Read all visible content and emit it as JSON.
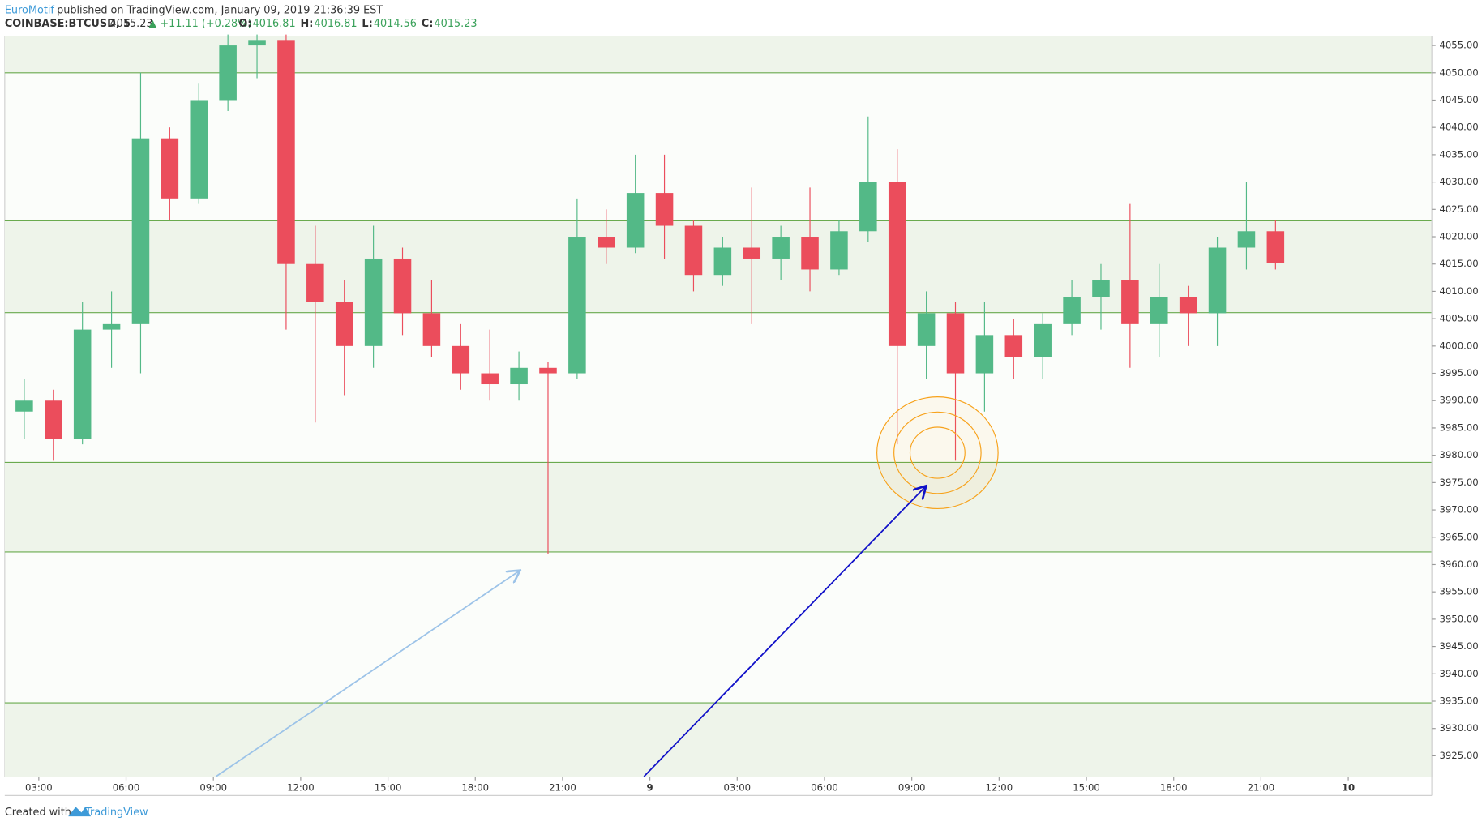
{
  "header": {
    "author": "EuroMotif",
    "published": "published on TradingView.com, January 09, 2019 21:36:39 EST",
    "symbol": "COINBASE:BTCUSD, 5",
    "price": "4015.23",
    "change": "▲ +11.11 (+0.28%)",
    "ohlc": [
      {
        "label": "O:",
        "value": "4016.81"
      },
      {
        "label": "H:",
        "value": "4016.81"
      },
      {
        "label": "L:",
        "value": "4014.56"
      },
      {
        "label": "C:",
        "value": "4015.23"
      }
    ]
  },
  "footer": {
    "created": "Created with",
    "brand": "TradingView"
  },
  "chart_data": {
    "type": "candlestick",
    "x": [
      2,
      3,
      4,
      5,
      6,
      7,
      8,
      9,
      10,
      11,
      12,
      13,
      14,
      15,
      16,
      17,
      18,
      19,
      20,
      21,
      22,
      23,
      24,
      25,
      26,
      27,
      28,
      29,
      30,
      31,
      32,
      33,
      34,
      35,
      36,
      37,
      38,
      39,
      40,
      41,
      42,
      43,
      44,
      45
    ],
    "open": [
      3988,
      3990,
      3983,
      4003,
      4004,
      4038,
      4027,
      4045,
      4055,
      4056,
      4015,
      4008,
      4000,
      4016,
      4006,
      4000,
      3995,
      3993,
      3996,
      3995,
      4020,
      4018,
      4028,
      4022,
      4013,
      4018,
      4016,
      4020,
      4014,
      4021,
      4030,
      4000,
      4006,
      3995,
      4002,
      3998,
      4004,
      4009,
      4012,
      4004,
      4009,
      4006,
      4018,
      4021
    ],
    "high": [
      3994,
      3992,
      4008,
      4010,
      4050,
      4040,
      4048,
      4057,
      4057,
      4057,
      4022,
      4012,
      4022,
      4018,
      4012,
      4004,
      4003,
      3999,
      3997,
      4027,
      4025,
      4035,
      4035,
      4023,
      4020,
      4029,
      4022,
      4029,
      4023,
      4042,
      4036,
      4010,
      4008,
      4008,
      4005,
      4006,
      4012,
      4015,
      4026,
      4015,
      4011,
      4020,
      4030,
      4023
    ],
    "low": [
      3983,
      3979,
      3982,
      3996,
      3995,
      4023,
      4026,
      4043,
      4049,
      4003,
      3986,
      3991,
      3996,
      4002,
      3998,
      3992,
      3990,
      3990,
      3962,
      3994,
      4015,
      4017,
      4016,
      4010,
      4011,
      4004,
      4012,
      4010,
      4013,
      4019,
      3982,
      3994,
      3979,
      3988,
      3994,
      3994,
      4002,
      4003,
      3996,
      3998,
      4000,
      4000,
      4014,
      4014
    ],
    "close": [
      3990,
      3983,
      4003,
      4004,
      4038,
      4027,
      4045,
      4055,
      4056,
      4015,
      4008,
      4000,
      4016,
      4006,
      4000,
      3995,
      3993,
      3996,
      3995,
      4020,
      4018,
      4028,
      4022,
      4013,
      4018,
      4016,
      4020,
      4014,
      4021,
      4030,
      4000,
      4006,
      3995,
      4002,
      3998,
      4004,
      4009,
      4012,
      4004,
      4009,
      4006,
      4018,
      4021,
      4015.23
    ],
    "up_color": "#53b987",
    "down_color": "#eb4d5c",
    "levels": [
      4050,
      4022.9,
      4006.1,
      3978.7,
      3962.3,
      3934.7
    ],
    "level_color": "#6aaa4e",
    "xlim": [
      1.83,
      50.87
    ],
    "xticks": [
      {
        "value": 3,
        "label": "03:00"
      },
      {
        "value": 6,
        "label": "06:00"
      },
      {
        "value": 9,
        "label": "09:00"
      },
      {
        "value": 12,
        "label": "12:00"
      },
      {
        "value": 15,
        "label": "15:00"
      },
      {
        "value": 18,
        "label": "18:00"
      },
      {
        "value": 21,
        "label": "21:00"
      },
      {
        "value": 24,
        "label": "9"
      },
      {
        "value": 27,
        "label": "03:00"
      },
      {
        "value": 30,
        "label": "06:00"
      },
      {
        "value": 33,
        "label": "09:00"
      },
      {
        "value": 36,
        "label": "12:00"
      },
      {
        "value": 39,
        "label": "15:00"
      },
      {
        "value": 42,
        "label": "18:00"
      },
      {
        "value": 45,
        "label": "21:00"
      },
      {
        "value": 48,
        "label": "10"
      }
    ],
    "ylim": [
      3921.2,
      4056.7
    ],
    "yticks": [
      {
        "value": 3925,
        "label": "3925.00"
      },
      {
        "value": 3930,
        "label": "3930.00"
      },
      {
        "value": 3935,
        "label": "3935.00"
      },
      {
        "value": 3940,
        "label": "3940.00"
      },
      {
        "value": 3945,
        "label": "3945.00"
      },
      {
        "value": 3950,
        "label": "3950.00"
      },
      {
        "value": 3955,
        "label": "3955.00"
      },
      {
        "value": 3960,
        "label": "3960.00"
      },
      {
        "value": 3965,
        "label": "3965.00"
      },
      {
        "value": 3970,
        "label": "3970.00"
      },
      {
        "value": 3975,
        "label": "3975.00"
      },
      {
        "value": 3980,
        "label": "3980.00"
      },
      {
        "value": 3985,
        "label": "3985.00"
      },
      {
        "value": 3990,
        "label": "3990.00"
      },
      {
        "value": 3995,
        "label": "3995.00"
      },
      {
        "value": 4000,
        "label": "4000.00"
      },
      {
        "value": 4005,
        "label": "4005.00"
      },
      {
        "value": 4010,
        "label": "4010.00"
      },
      {
        "value": 4015,
        "label": "4015.00"
      },
      {
        "value": 4020,
        "label": "4020.00"
      },
      {
        "value": 4025,
        "label": "4025.00"
      },
      {
        "value": 4030,
        "label": "4030.00"
      },
      {
        "value": 4035,
        "label": "4035.00"
      },
      {
        "value": 4040,
        "label": "4040.00"
      },
      {
        "value": 4045,
        "label": "4045.00"
      },
      {
        "value": 4050,
        "label": "4050.00"
      },
      {
        "value": 4055,
        "label": "4055.00"
      }
    ]
  }
}
